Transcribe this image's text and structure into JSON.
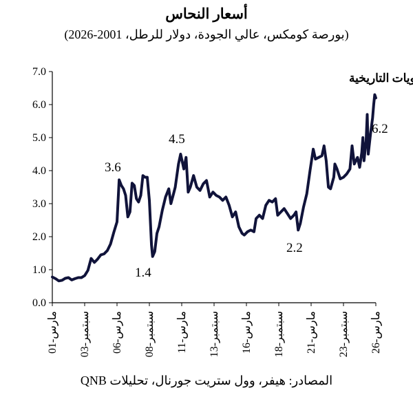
{
  "chart_data": {
    "type": "line",
    "title": "أسعار النحاس",
    "subtitle": "(بورصة كومكس، عالي الجودة، دولار للرطل، 2001-2026)",
    "source": "المصادر: هيفر، وول ستريت جورنال، تحليلات QNB",
    "xlabel": "",
    "ylabel": "",
    "ylim": [
      0,
      7
    ],
    "yticks": [
      "7.0",
      "6.0",
      "5.0",
      "4.0",
      "3.0",
      "2.0",
      "1.0",
      "0.0"
    ],
    "xticks": [
      "مارس-01",
      "سبتمبر-03",
      "مارس-06",
      "سبتمبر-08",
      "مارس-11",
      "سبتمبر-13",
      "مارس-16",
      "سبتمبر-18",
      "مارس-21",
      "سبتمبر-23",
      "مارس-26"
    ],
    "grid": false,
    "line_color": "#10133a",
    "annotations": {
      "peak_2006": "3.6",
      "trough_2008": "1.4",
      "peak_2011": "4.5",
      "trough_2020": "2.2",
      "latest_2026": "6.2",
      "record_high": "أعلى المستويات التاريخية"
    },
    "series": [
      {
        "points": [
          [
            "2001-03",
            0.78
          ],
          [
            "2001-06",
            0.73
          ],
          [
            "2001-09",
            0.66
          ],
          [
            "2001-12",
            0.68
          ],
          [
            "2002-03",
            0.74
          ],
          [
            "2002-06",
            0.76
          ],
          [
            "2002-09",
            0.69
          ],
          [
            "2002-12",
            0.73
          ],
          [
            "2003-03",
            0.76
          ],
          [
            "2003-06",
            0.76
          ],
          [
            "2003-09",
            0.82
          ],
          [
            "2003-12",
            0.98
          ],
          [
            "2004-03",
            1.34
          ],
          [
            "2004-06",
            1.22
          ],
          [
            "2004-09",
            1.32
          ],
          [
            "2004-12",
            1.45
          ],
          [
            "2005-03",
            1.48
          ],
          [
            "2005-06",
            1.58
          ],
          [
            "2005-09",
            1.78
          ],
          [
            "2005-12",
            2.13
          ],
          [
            "2006-03",
            2.45
          ],
          [
            "2006-05",
            3.72
          ],
          [
            "2006-07",
            3.55
          ],
          [
            "2006-09",
            3.45
          ],
          [
            "2006-11",
            3.25
          ],
          [
            "2007-01",
            2.6
          ],
          [
            "2007-03",
            2.75
          ],
          [
            "2007-05",
            3.62
          ],
          [
            "2007-07",
            3.55
          ],
          [
            "2007-09",
            3.15
          ],
          [
            "2007-11",
            3.05
          ],
          [
            "2008-01",
            3.25
          ],
          [
            "2008-03",
            3.85
          ],
          [
            "2008-05",
            3.8
          ],
          [
            "2008-07",
            3.8
          ],
          [
            "2008-09",
            3.1
          ],
          [
            "2008-11",
            1.75
          ],
          [
            "2008-12",
            1.4
          ],
          [
            "2009-02",
            1.55
          ],
          [
            "2009-04",
            2.1
          ],
          [
            "2009-06",
            2.3
          ],
          [
            "2009-09",
            2.8
          ],
          [
            "2009-12",
            3.2
          ],
          [
            "2010-03",
            3.45
          ],
          [
            "2010-05",
            3.0
          ],
          [
            "2010-07",
            3.25
          ],
          [
            "2010-09",
            3.5
          ],
          [
            "2010-12",
            4.2
          ],
          [
            "2011-02",
            4.5
          ],
          [
            "2011-05",
            4.05
          ],
          [
            "2011-07",
            4.4
          ],
          [
            "2011-09",
            3.35
          ],
          [
            "2011-11",
            3.5
          ],
          [
            "2012-02",
            3.85
          ],
          [
            "2012-05",
            3.5
          ],
          [
            "2012-08",
            3.4
          ],
          [
            "2012-11",
            3.6
          ],
          [
            "2013-02",
            3.7
          ],
          [
            "2013-05",
            3.2
          ],
          [
            "2013-08",
            3.35
          ],
          [
            "2013-11",
            3.25
          ],
          [
            "2014-02",
            3.2
          ],
          [
            "2014-05",
            3.1
          ],
          [
            "2014-08",
            3.2
          ],
          [
            "2014-11",
            2.95
          ],
          [
            "2015-02",
            2.6
          ],
          [
            "2015-05",
            2.75
          ],
          [
            "2015-08",
            2.3
          ],
          [
            "2015-11",
            2.1
          ],
          [
            "2016-01",
            2.05
          ],
          [
            "2016-04",
            2.15
          ],
          [
            "2016-07",
            2.2
          ],
          [
            "2016-10",
            2.15
          ],
          [
            "2016-12",
            2.55
          ],
          [
            "2017-03",
            2.65
          ],
          [
            "2017-06",
            2.55
          ],
          [
            "2017-09",
            2.95
          ],
          [
            "2017-12",
            3.1
          ],
          [
            "2018-03",
            3.05
          ],
          [
            "2018-06",
            3.15
          ],
          [
            "2018-08",
            2.65
          ],
          [
            "2018-11",
            2.75
          ],
          [
            "2019-02",
            2.85
          ],
          [
            "2019-05",
            2.7
          ],
          [
            "2019-08",
            2.55
          ],
          [
            "2019-11",
            2.65
          ],
          [
            "2020-01",
            2.75
          ],
          [
            "2020-03",
            2.2
          ],
          [
            "2020-05",
            2.4
          ],
          [
            "2020-08",
            2.9
          ],
          [
            "2020-11",
            3.3
          ],
          [
            "2021-02",
            4.0
          ],
          [
            "2021-05",
            4.65
          ],
          [
            "2021-07",
            4.35
          ],
          [
            "2021-10",
            4.4
          ],
          [
            "2022-01",
            4.45
          ],
          [
            "2022-03",
            4.75
          ],
          [
            "2022-05",
            4.3
          ],
          [
            "2022-07",
            3.5
          ],
          [
            "2022-09",
            3.45
          ],
          [
            "2022-12",
            3.8
          ],
          [
            "2023-01",
            4.2
          ],
          [
            "2023-03",
            4.05
          ],
          [
            "2023-06",
            3.75
          ],
          [
            "2023-09",
            3.8
          ],
          [
            "2023-12",
            3.9
          ],
          [
            "2024-03",
            4.05
          ],
          [
            "2024-05",
            4.75
          ],
          [
            "2024-07",
            4.2
          ],
          [
            "2024-10",
            4.4
          ],
          [
            "2024-12",
            4.1
          ],
          [
            "2025-02",
            4.55
          ],
          [
            "2025-03",
            5.0
          ],
          [
            "2025-04",
            4.3
          ],
          [
            "2025-06",
            4.9
          ],
          [
            "2025-07",
            5.7
          ],
          [
            "2025-08",
            4.5
          ],
          [
            "2025-10",
            5.1
          ],
          [
            "2025-12",
            5.6
          ],
          [
            "2026-01",
            6.0
          ],
          [
            "2026-02",
            6.3
          ],
          [
            "2026-03",
            6.2
          ]
        ]
      }
    ]
  }
}
